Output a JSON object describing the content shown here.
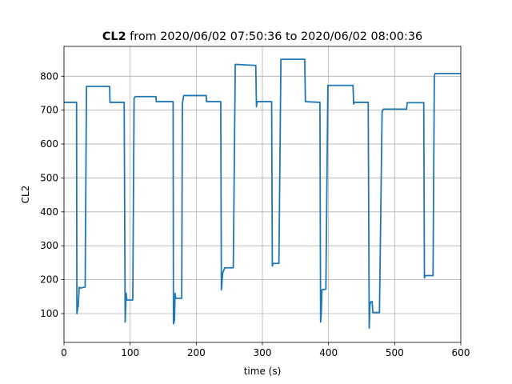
{
  "chart_data": {
    "type": "line",
    "title_bold": "CL2",
    "title": "from 2020/06/02 07:50:36 to 2020/06/02 08:00:36",
    "xlabel": "time (s)",
    "ylabel": "CL2",
    "x": [
      0,
      19,
      19.5,
      21,
      21.5,
      23,
      23.5,
      32,
      34,
      35,
      69,
      69.5,
      91,
      92.5,
      94,
      95,
      97,
      104,
      106,
      108,
      139,
      139.5,
      165,
      165.5,
      167,
      168,
      169,
      178,
      179,
      181,
      215,
      215.5,
      237,
      238,
      240,
      243,
      256,
      259,
      260,
      290,
      291,
      292,
      314,
      315,
      316,
      325,
      328,
      329,
      364,
      365,
      387,
      388,
      389,
      390,
      396,
      399,
      400,
      437,
      438,
      439,
      460,
      461.5,
      462.5,
      464,
      466,
      467,
      468,
      477,
      481,
      483,
      518,
      519,
      544,
      545,
      546,
      558,
      560,
      561,
      600
    ],
    "series": [
      {
        "name": "CL2",
        "color": "#1f77b4",
        "values": [
          723,
          723,
          100,
          120,
          120,
          178,
          175,
          178,
          770,
          770,
          770,
          723,
          723,
          75,
          160,
          140,
          140,
          140,
          735,
          740,
          740,
          725,
          725,
          70,
          80,
          160,
          145,
          145,
          720,
          743,
          743,
          725,
          725,
          170,
          220,
          235,
          235,
          835,
          835,
          832,
          710,
          725,
          725,
          240,
          248,
          248,
          850,
          850,
          850,
          725,
          723,
          75,
          100,
          170,
          172,
          773,
          773,
          773,
          718,
          723,
          723,
          57,
          125,
          135,
          135,
          103,
          103,
          103,
          695,
          703,
          703,
          722,
          722,
          205,
          212,
          212,
          800,
          808,
          808
        ]
      }
    ],
    "xlim": [
      0,
      600
    ],
    "xticks": [
      0,
      100,
      200,
      300,
      400,
      500,
      600
    ],
    "ylim": [
      15,
      888
    ],
    "yticks": [
      100,
      200,
      300,
      400,
      500,
      600,
      700,
      800
    ],
    "grid": true
  }
}
